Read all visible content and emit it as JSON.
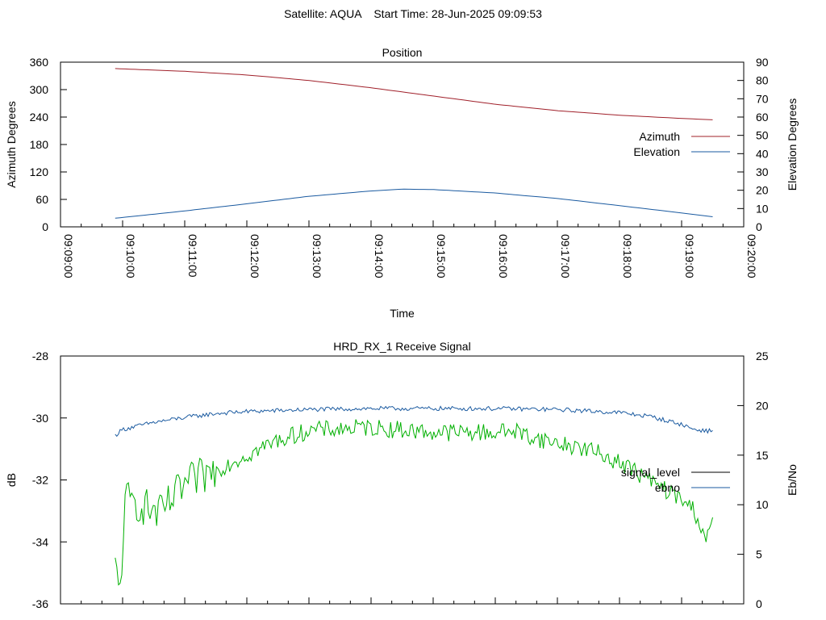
{
  "header": {
    "title": "Satellite: AQUA    Start Time: 28-Jun-2025 09:09:53"
  },
  "chart_data": [
    {
      "type": "line",
      "title": "Position",
      "xlabel": "Time",
      "ylabel_left": "Azimuth Degrees",
      "ylabel_right": "Elevation Degrees",
      "x_ticks": [
        "09:09:00",
        "09:10:00",
        "09:11:00",
        "09:12:00",
        "09:13:00",
        "09:14:00",
        "09:15:00",
        "09:16:00",
        "09:17:00",
        "09:18:00",
        "09:19:00",
        "09:20:00"
      ],
      "x_range_minutes": [
        0,
        11
      ],
      "ylim_left": [
        0,
        360
      ],
      "ylim_right": [
        0,
        90
      ],
      "yticks_left": [
        "0",
        "60",
        "120",
        "180",
        "240",
        "300",
        "360"
      ],
      "yticks_right": [
        "0",
        "10",
        "20",
        "30",
        "40",
        "50",
        "60",
        "70",
        "80",
        "90"
      ],
      "legend_position": "right",
      "series": [
        {
          "name": "Azimuth",
          "axis": "left",
          "color": "#a0202a",
          "x": [
            0.88,
            2,
            3,
            4,
            5,
            6,
            7,
            8,
            9,
            10,
            10.5
          ],
          "y": [
            346,
            340,
            332,
            320,
            304,
            286,
            268,
            254,
            244,
            237,
            234
          ]
        },
        {
          "name": "Elevation",
          "axis": "right",
          "color": "#1a5aa0",
          "x": [
            0.88,
            2,
            3,
            4,
            5,
            5.5,
            6,
            7,
            8,
            9,
            10,
            10.5
          ],
          "y": [
            4.7,
            8.7,
            12.6,
            16.7,
            19.6,
            20.6,
            20.4,
            18.5,
            15.5,
            11.6,
            7.6,
            5.5
          ]
        }
      ]
    },
    {
      "type": "line",
      "title": "HRD_RX_1 Receive Signal",
      "xlabel": "",
      "ylabel_left": "dB",
      "ylabel_right": "Eb/No",
      "x_range_minutes": [
        0,
        11
      ],
      "ylim_left": [
        -36,
        -28
      ],
      "ylim_right": [
        0,
        25
      ],
      "yticks_left": [
        "-36",
        "-34",
        "-32",
        "-30",
        "-28"
      ],
      "yticks_right": [
        "0",
        "5",
        "10",
        "15",
        "20",
        "25"
      ],
      "legend_position": "right",
      "series": [
        {
          "name": "signal_level",
          "axis": "left",
          "color": "#000000",
          "x": [],
          "y": []
        },
        {
          "name": "ebno",
          "axis": "right",
          "color": "#1a5aa0",
          "x": [
            0.88,
            1.0,
            1.5,
            2.0,
            2.5,
            3.0,
            3.5,
            4.0,
            5.0,
            6.0,
            7.0,
            8.0,
            9.0,
            9.5,
            10.0,
            10.2,
            10.5
          ],
          "y": [
            17.0,
            17.6,
            18.3,
            18.8,
            19.2,
            19.4,
            19.5,
            19.6,
            19.7,
            19.7,
            19.7,
            19.6,
            19.3,
            18.9,
            18.1,
            17.6,
            17.4
          ]
        },
        {
          "name": "",
          "axis": "right",
          "color": "#00b000",
          "x": [
            0.88,
            0.95,
            1.05,
            1.3,
            1.6,
            2.0,
            2.5,
            3.0,
            3.5,
            4.0,
            5.0,
            6.0,
            7.0,
            7.3,
            7.6,
            8.0,
            8.5,
            9.0,
            9.3,
            9.6,
            10.0,
            10.2,
            10.4,
            10.5
          ],
          "y": [
            3.5,
            1.0,
            10.5,
            10.0,
            9.0,
            12.0,
            13.5,
            15.0,
            16.5,
            17.5,
            17.8,
            17.3,
            17.3,
            17.5,
            16.8,
            16.2,
            15.6,
            14.3,
            13.2,
            12.0,
            10.5,
            9.5,
            6.5,
            8.0
          ]
        }
      ]
    }
  ]
}
